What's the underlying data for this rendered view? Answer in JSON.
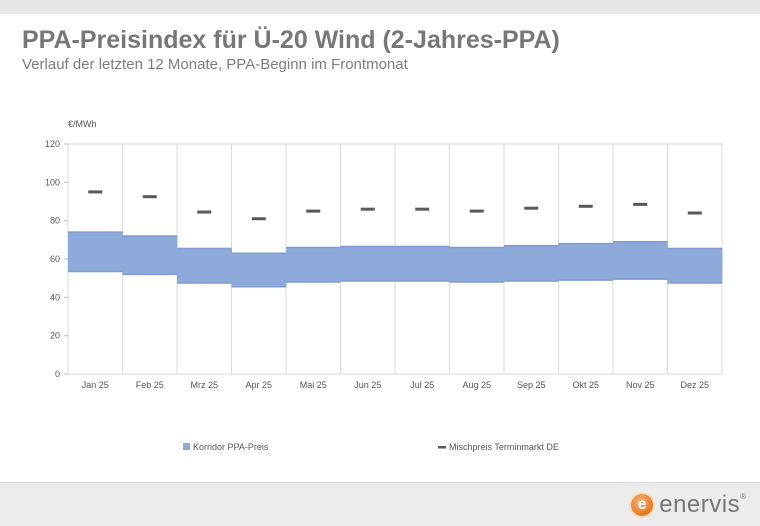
{
  "header": {
    "title": "PPA-Preisindex für Ü-20 Wind (2-Jahres-PPA)",
    "subtitle": "Verlauf der letzten 12 Monate, PPA-Beginn im Frontmonat"
  },
  "chart_data": {
    "type": "bar",
    "title": "",
    "ylabel": "€/MWh",
    "xlabel": "",
    "ylim": [
      0,
      120
    ],
    "yticks": [
      0,
      20,
      40,
      60,
      80,
      100,
      120
    ],
    "grid": "vertical gridlines between months",
    "legend_position": "bottom",
    "categories": [
      "Jan 25",
      "Feb 25",
      "Mrz 25",
      "Apr 25",
      "Mai 25",
      "Jun 25",
      "Jul 25",
      "Aug 25",
      "Sep 25",
      "Okt 25",
      "Nov 25",
      "Dez 25"
    ],
    "series": [
      {
        "name": "Korridor PPA-Preis",
        "kind": "floating range",
        "color": "#8eaadb",
        "low": [
          53.5,
          52,
          47.5,
          45.5,
          48,
          48.5,
          48.5,
          48,
          48.5,
          49,
          49.5,
          47.5
        ],
        "high": [
          74,
          72,
          65.5,
          63,
          66,
          66.5,
          66.5,
          66,
          67,
          68,
          69,
          65.5
        ]
      },
      {
        "name": "Mischpreis Terminmarkt DE",
        "kind": "marker",
        "color": "#595959",
        "values": [
          95,
          92.5,
          84.5,
          81,
          85,
          86,
          86,
          85,
          86.5,
          87.5,
          88.5,
          84
        ]
      }
    ]
  },
  "logo": {
    "mark": "e",
    "text": "enervis",
    "reg": "®"
  }
}
